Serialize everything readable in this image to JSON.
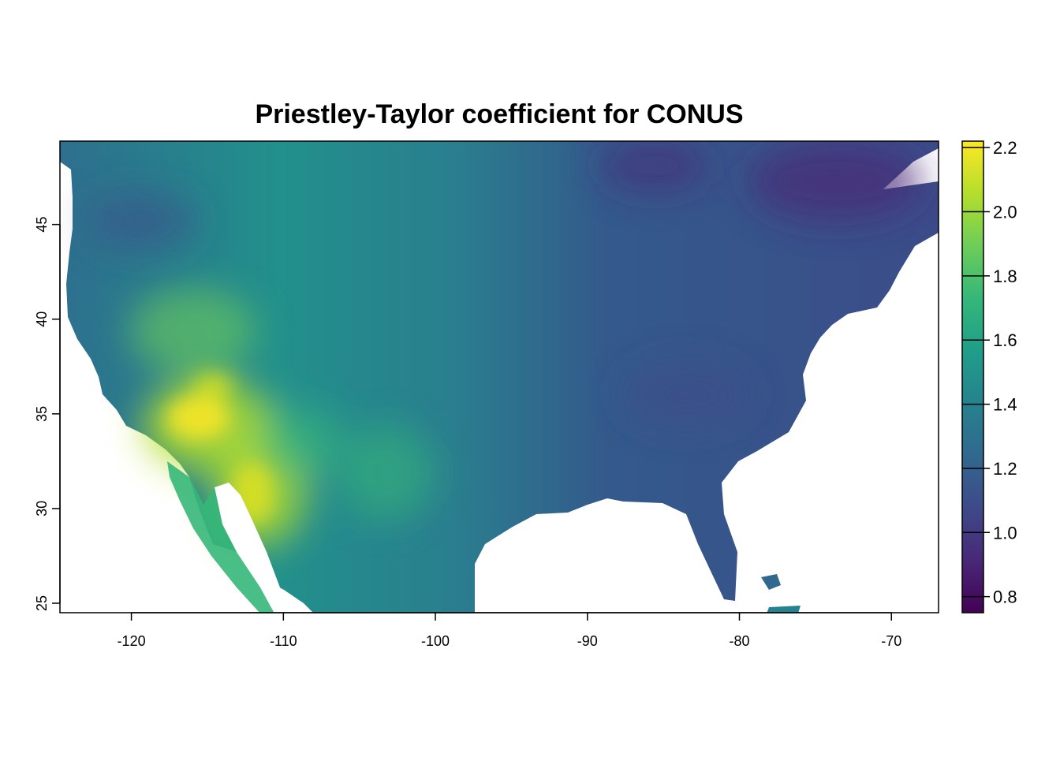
{
  "title": "Priestley-Taylor coefficient for CONUS",
  "chart_data": {
    "type": "heatmap",
    "title": "Priestley-Taylor coefficient for CONUS",
    "xlim": [
      -124.7,
      -66.9
    ],
    "ylim": [
      24.5,
      49.4
    ],
    "x_ticks": [
      -120,
      -110,
      -100,
      -90,
      -80,
      -70
    ],
    "y_ticks": [
      25,
      30,
      35,
      40,
      45
    ],
    "x_tick_labels": [
      "-120",
      "-110",
      "-100",
      "-90",
      "-80",
      "-70"
    ],
    "y_tick_labels": [
      "25",
      "30",
      "35",
      "40",
      "45"
    ],
    "colorbar": {
      "range": [
        0.75,
        2.22
      ],
      "ticks": [
        0.8,
        1.0,
        1.2,
        1.4,
        1.6,
        1.8,
        2.0,
        2.2
      ],
      "tick_labels": [
        "0.8",
        "1.0",
        "1.2",
        "1.4",
        "1.6",
        "1.8",
        "2.0",
        "2.2"
      ],
      "palette": "viridis",
      "colors": [
        "#440154",
        "#482878",
        "#3E4A89",
        "#31688E",
        "#26828E",
        "#1F9E89",
        "#35B779",
        "#6DCD59",
        "#B4DE2C",
        "#FDE725"
      ]
    },
    "grid": false,
    "legend_position": "right"
  }
}
